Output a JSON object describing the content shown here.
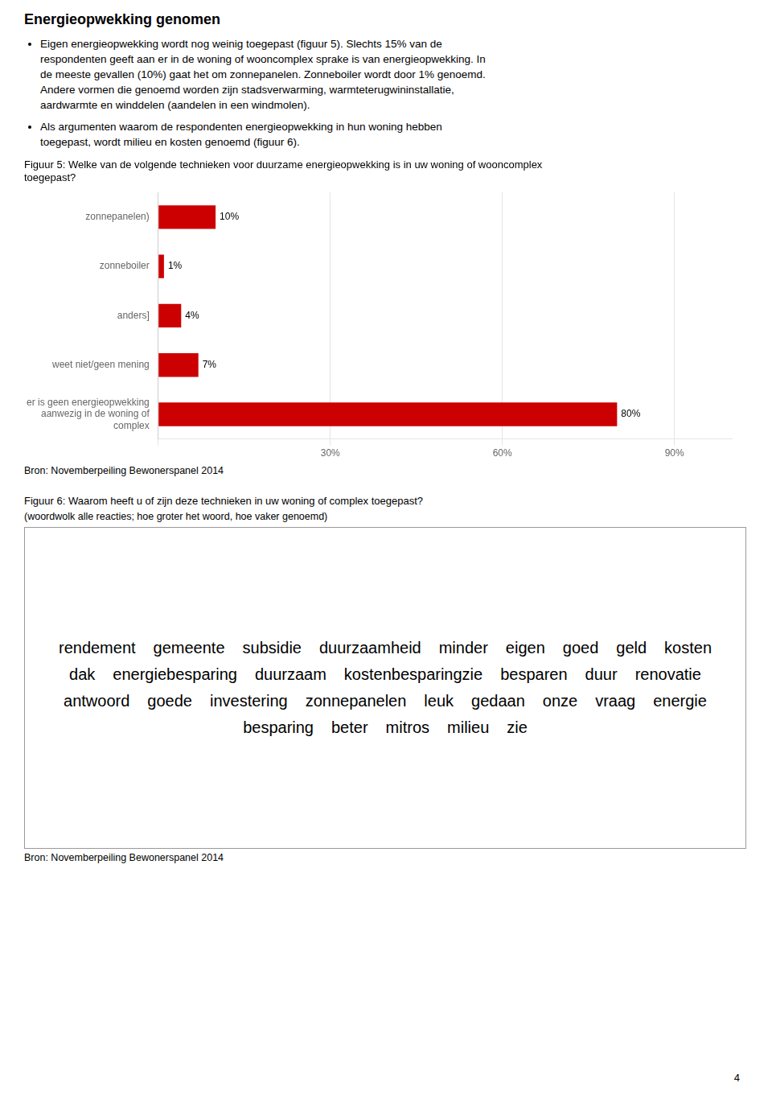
{
  "title": "Energieopwekking genomen",
  "annotations": [
    [
      "Eigen energieopwekking wordt nog weinig toegepast (figuur 5). Slechts 15% van de",
      "respondenten geeft aan er in de woning of wooncomplex sprake is van energieopwekking. In",
      "de meeste gevallen (10%) gaat het om zonnepanelen. Zonneboiler wordt door 1% genoemd.",
      "Andere vormen die genoemd worden zijn stadsverwarming, warmteterugwininstallatie,",
      "aardwarmte en winddelen (aandelen in een windmolen)."
    ],
    [
      "Als argumenten waarom de respondenten energieopwekking in hun woning hebben",
      "toegepast, wordt milieu en kosten genoemd (figuur 6)."
    ]
  ],
  "page_number": 4,
  "chart_data": [
    {
      "type": "bar",
      "orientation": "horizontal",
      "title": "Figuur 5: Welke van de volgende technieken voor duurzame energieopwekking is in uw woning of wooncomplex\ntoegepast?",
      "categories": [
        "zonnepanelen)",
        "zonneboiler",
        "anders]",
        "weet niet/geen mening",
        "er is geen energieopwekking\naanwezig in de woning of\ncomplex"
      ],
      "values": [
        10,
        1,
        4,
        7,
        80
      ],
      "value_labels": [
        "10%",
        "1%",
        "4%",
        "7%",
        "80%"
      ],
      "data_labels": true,
      "color": "#cc0000",
      "xlim": [
        0,
        100
      ],
      "xticks": [
        {
          "value": 0,
          "label": null
        },
        {
          "value": 30,
          "label": "30%"
        },
        {
          "value": 60,
          "label": "60%"
        },
        {
          "value": 90,
          "label": "90%"
        }
      ],
      "grid": true,
      "annotations": [
        "Bron: Novemberpeiling Bewonerspanel 2014"
      ]
    },
    {
      "type": "wordcloud",
      "title": "Figuur 6: Waarom heeft u of zijn deze technieken in uw woning of complex toegepast?",
      "subtitle": "(woordwolk alle reacties; hoe groter het woord, hoe vaker genoemd)",
      "categories": [
        "rendement",
        "gemeente",
        "subsidie",
        "duurzaamheid",
        "minder",
        "eigen",
        "goed",
        "geld",
        "kosten",
        "dak",
        "energiebesparing",
        "duurzaam",
        "kostenbesparingzie",
        "besparen",
        "duur",
        "renovatie",
        "antwoord",
        "goede",
        "investering",
        "zonnepanelen",
        "leuk",
        "gedaan",
        "onze",
        "vraag",
        "energie",
        "besparing",
        "beter",
        "mitros",
        "milieu",
        "zie"
      ],
      "annotations": [
        "Bron: Novemberpeiling Bewonerspanel 2014"
      ]
    }
  ]
}
